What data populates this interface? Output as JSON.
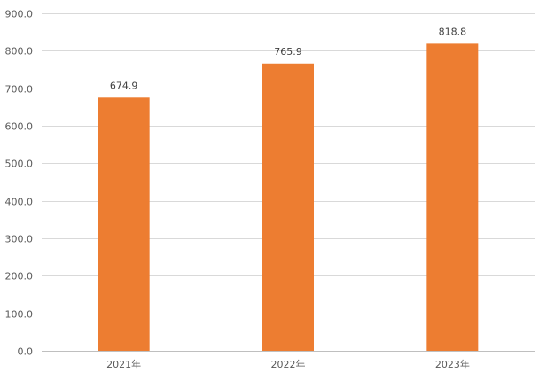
{
  "chart_data": {
    "type": "bar",
    "title": "",
    "xlabel": "",
    "ylabel": "",
    "categories": [
      "2021年",
      "2022年",
      "2023年"
    ],
    "values": [
      674.9,
      765.9,
      818.8
    ],
    "value_labels": [
      "674.9",
      "765.9",
      "818.8"
    ],
    "ylim": [
      0,
      900
    ],
    "yticks": [
      "0.0",
      "100.0",
      "200.0",
      "300.0",
      "400.0",
      "500.0",
      "600.0",
      "700.0",
      "800.0",
      "900.0"
    ],
    "grid": true,
    "legend": "none",
    "colors": {
      "bar": "#ED7D31",
      "grid": "#D9D9D9"
    }
  }
}
